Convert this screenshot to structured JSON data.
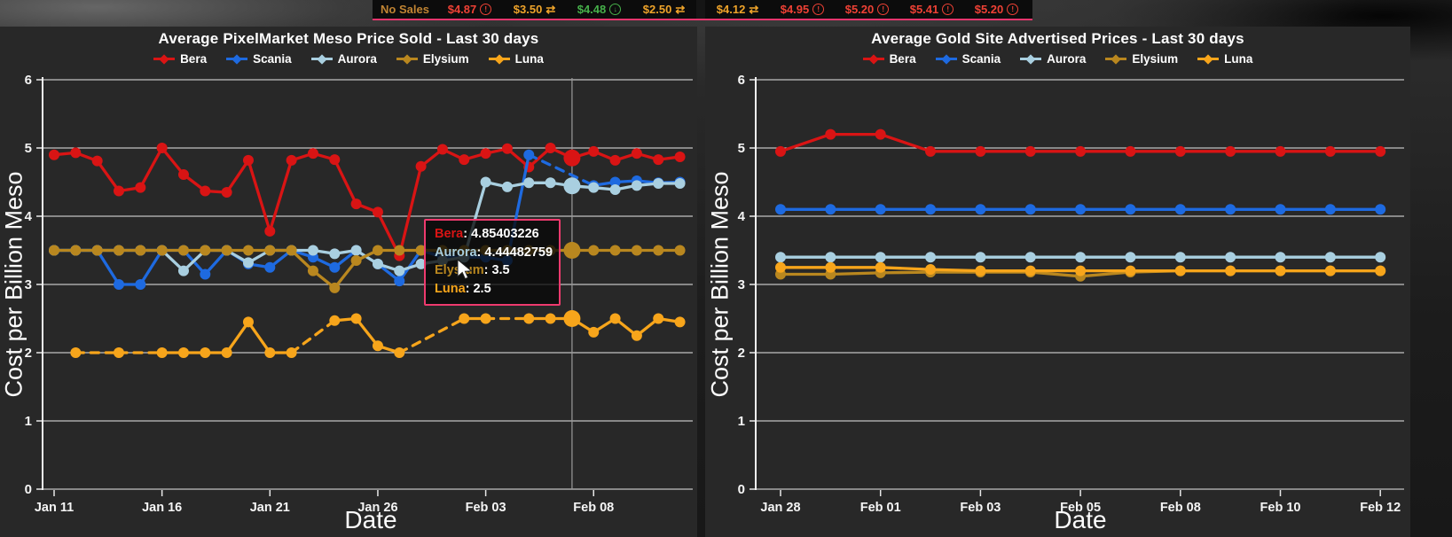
{
  "colors": {
    "bera": "#d91414",
    "scania": "#1e6ae0",
    "aurora": "#a9cfe0",
    "elysium": "#b9871f",
    "luna": "#f7a51b",
    "grid": "#e8e8e8",
    "axis_text": "#f5f5f5",
    "panel_bg": "#282828",
    "crosshair": "#9a9a9a",
    "tooltip_border": "#ee3a6e",
    "topbar_border": "#e8356d",
    "price_red": "#ee4135",
    "price_orange": "#eea32a",
    "price_green": "#46b04a",
    "no_sales": "#c08433"
  },
  "top_bar": {
    "groups": [
      {
        "cells": [
          {
            "text": "No Sales",
            "color": "no_sales",
            "icon": null
          },
          {
            "text": "$4.87",
            "color": "price_red",
            "icon": "alert-circle"
          },
          {
            "text": "$3.50",
            "color": "price_orange",
            "icon": "swap-arrows"
          },
          {
            "text": "$4.48",
            "color": "price_green",
            "icon": "arrow-down-circle"
          },
          {
            "text": "$2.50",
            "color": "price_orange",
            "icon": "swap-arrows"
          }
        ]
      },
      {
        "cells": [
          {
            "text": "$4.12",
            "color": "price_orange",
            "icon": "swap-arrows"
          },
          {
            "text": "$4.95",
            "color": "price_red",
            "icon": "alert-circle"
          },
          {
            "text": "$5.20",
            "color": "price_red",
            "icon": "alert-circle"
          },
          {
            "text": "$5.41",
            "color": "price_red",
            "icon": "alert-circle"
          },
          {
            "text": "$5.20",
            "color": "price_red",
            "icon": "alert-circle"
          }
        ]
      }
    ]
  },
  "tooltip": {
    "rows": [
      {
        "series": "Bera",
        "value": "4.85403226"
      },
      {
        "series": "Aurora",
        "value": "4.44482759"
      },
      {
        "series": "Elysium",
        "value": "3.5"
      },
      {
        "series": "Luna",
        "value": "2.5"
      }
    ]
  },
  "chart_data": [
    {
      "type": "line",
      "title": "Average PixelMarket Meso Price Sold - Last 30 days",
      "xlabel": "Date",
      "ylabel": "Cost per Billion Meso",
      "ylim": [
        0,
        6
      ],
      "yticks": [
        0,
        1,
        2,
        3,
        4,
        5,
        6
      ],
      "grid": true,
      "legend_position": "top",
      "n_points": 30,
      "x_tick_labels": [
        "Jan 11",
        "Jan 16",
        "Jan 21",
        "Jan 26",
        "Feb 03",
        "Feb 08"
      ],
      "x_tick_indices": [
        0,
        5,
        10,
        15,
        20,
        25
      ],
      "hover_index": 24,
      "note": "dashed segments bridge days with missing data (null values)",
      "series": [
        {
          "name": "Bera",
          "values": [
            4.9,
            4.93,
            4.81,
            4.37,
            4.42,
            5.0,
            4.61,
            4.37,
            4.35,
            4.82,
            3.78,
            4.82,
            4.92,
            4.83,
            4.18,
            4.06,
            3.42,
            4.73,
            4.98,
            4.83,
            4.92,
            4.99,
            4.72,
            5.0,
            4.854,
            4.95,
            4.82,
            4.92,
            4.83,
            4.87
          ]
        },
        {
          "name": "Scania",
          "values": [
            3.5,
            3.5,
            3.5,
            3.0,
            3.0,
            3.5,
            3.5,
            3.15,
            3.5,
            3.3,
            3.25,
            3.5,
            3.4,
            3.25,
            3.5,
            3.3,
            3.05,
            3.5,
            3.4,
            3.4,
            3.4,
            3.35,
            4.9,
            null,
            null,
            4.45,
            4.5,
            4.52,
            4.49,
            4.5
          ]
        },
        {
          "name": "Aurora",
          "values": [
            3.5,
            3.5,
            3.5,
            3.5,
            3.5,
            3.5,
            3.2,
            3.5,
            3.5,
            3.32,
            3.5,
            3.5,
            3.5,
            3.45,
            3.5,
            3.3,
            3.2,
            3.3,
            3.35,
            3.4,
            4.5,
            4.43,
            4.49,
            4.49,
            4.4448,
            4.42,
            4.39,
            4.45,
            4.48,
            4.48
          ]
        },
        {
          "name": "Elysium",
          "values": [
            3.5,
            3.5,
            3.5,
            3.5,
            3.5,
            3.5,
            3.5,
            3.5,
            3.5,
            3.5,
            3.5,
            3.5,
            3.2,
            2.95,
            3.35,
            3.5,
            3.5,
            3.5,
            3.5,
            3.5,
            3.5,
            3.5,
            3.5,
            3.5,
            3.5,
            3.5,
            3.5,
            3.5,
            3.5,
            3.5
          ]
        },
        {
          "name": "Luna",
          "values": [
            null,
            2.0,
            null,
            2.0,
            null,
            2.0,
            2.0,
            2.0,
            2.0,
            2.45,
            2.0,
            2.0,
            null,
            2.47,
            2.5,
            2.1,
            2.0,
            null,
            null,
            2.5,
            2.5,
            null,
            2.5,
            2.5,
            2.5,
            2.3,
            2.5,
            2.25,
            2.5,
            2.45
          ]
        }
      ]
    },
    {
      "type": "line",
      "title": "Average Gold Site Advertised Prices - Last 30 days",
      "xlabel": "Date",
      "ylabel": "Cost per Billion Meso",
      "ylim": [
        0,
        6
      ],
      "yticks": [
        0,
        1,
        2,
        3,
        4,
        5,
        6
      ],
      "grid": true,
      "legend_position": "top",
      "n_points": 13,
      "x_tick_labels": [
        "Jan 28",
        "Feb 01",
        "Feb 03",
        "Feb 05",
        "Feb 08",
        "Feb 10",
        "Feb 12"
      ],
      "x_tick_indices": [
        0,
        2,
        4,
        6,
        8,
        10,
        12
      ],
      "hover_index": null,
      "series": [
        {
          "name": "Bera",
          "values": [
            4.95,
            5.2,
            5.2,
            4.95,
            4.95,
            4.95,
            4.95,
            4.95,
            4.95,
            4.95,
            4.95,
            4.95,
            4.95
          ]
        },
        {
          "name": "Scania",
          "values": [
            4.1,
            4.1,
            4.1,
            4.1,
            4.1,
            4.1,
            4.1,
            4.1,
            4.1,
            4.1,
            4.1,
            4.1,
            4.1
          ]
        },
        {
          "name": "Aurora",
          "values": [
            3.4,
            3.4,
            3.4,
            3.4,
            3.4,
            3.4,
            3.4,
            3.4,
            3.4,
            3.4,
            3.4,
            3.4,
            3.4
          ]
        },
        {
          "name": "Elysium",
          "values": [
            3.15,
            3.15,
            3.17,
            3.18,
            3.18,
            3.18,
            3.12,
            3.18,
            3.2,
            3.2,
            3.2,
            3.2,
            3.2
          ]
        },
        {
          "name": "Luna",
          "values": [
            3.25,
            3.25,
            3.25,
            3.22,
            3.2,
            3.2,
            3.2,
            3.2,
            3.2,
            3.2,
            3.2,
            3.2,
            3.2
          ]
        }
      ]
    }
  ]
}
